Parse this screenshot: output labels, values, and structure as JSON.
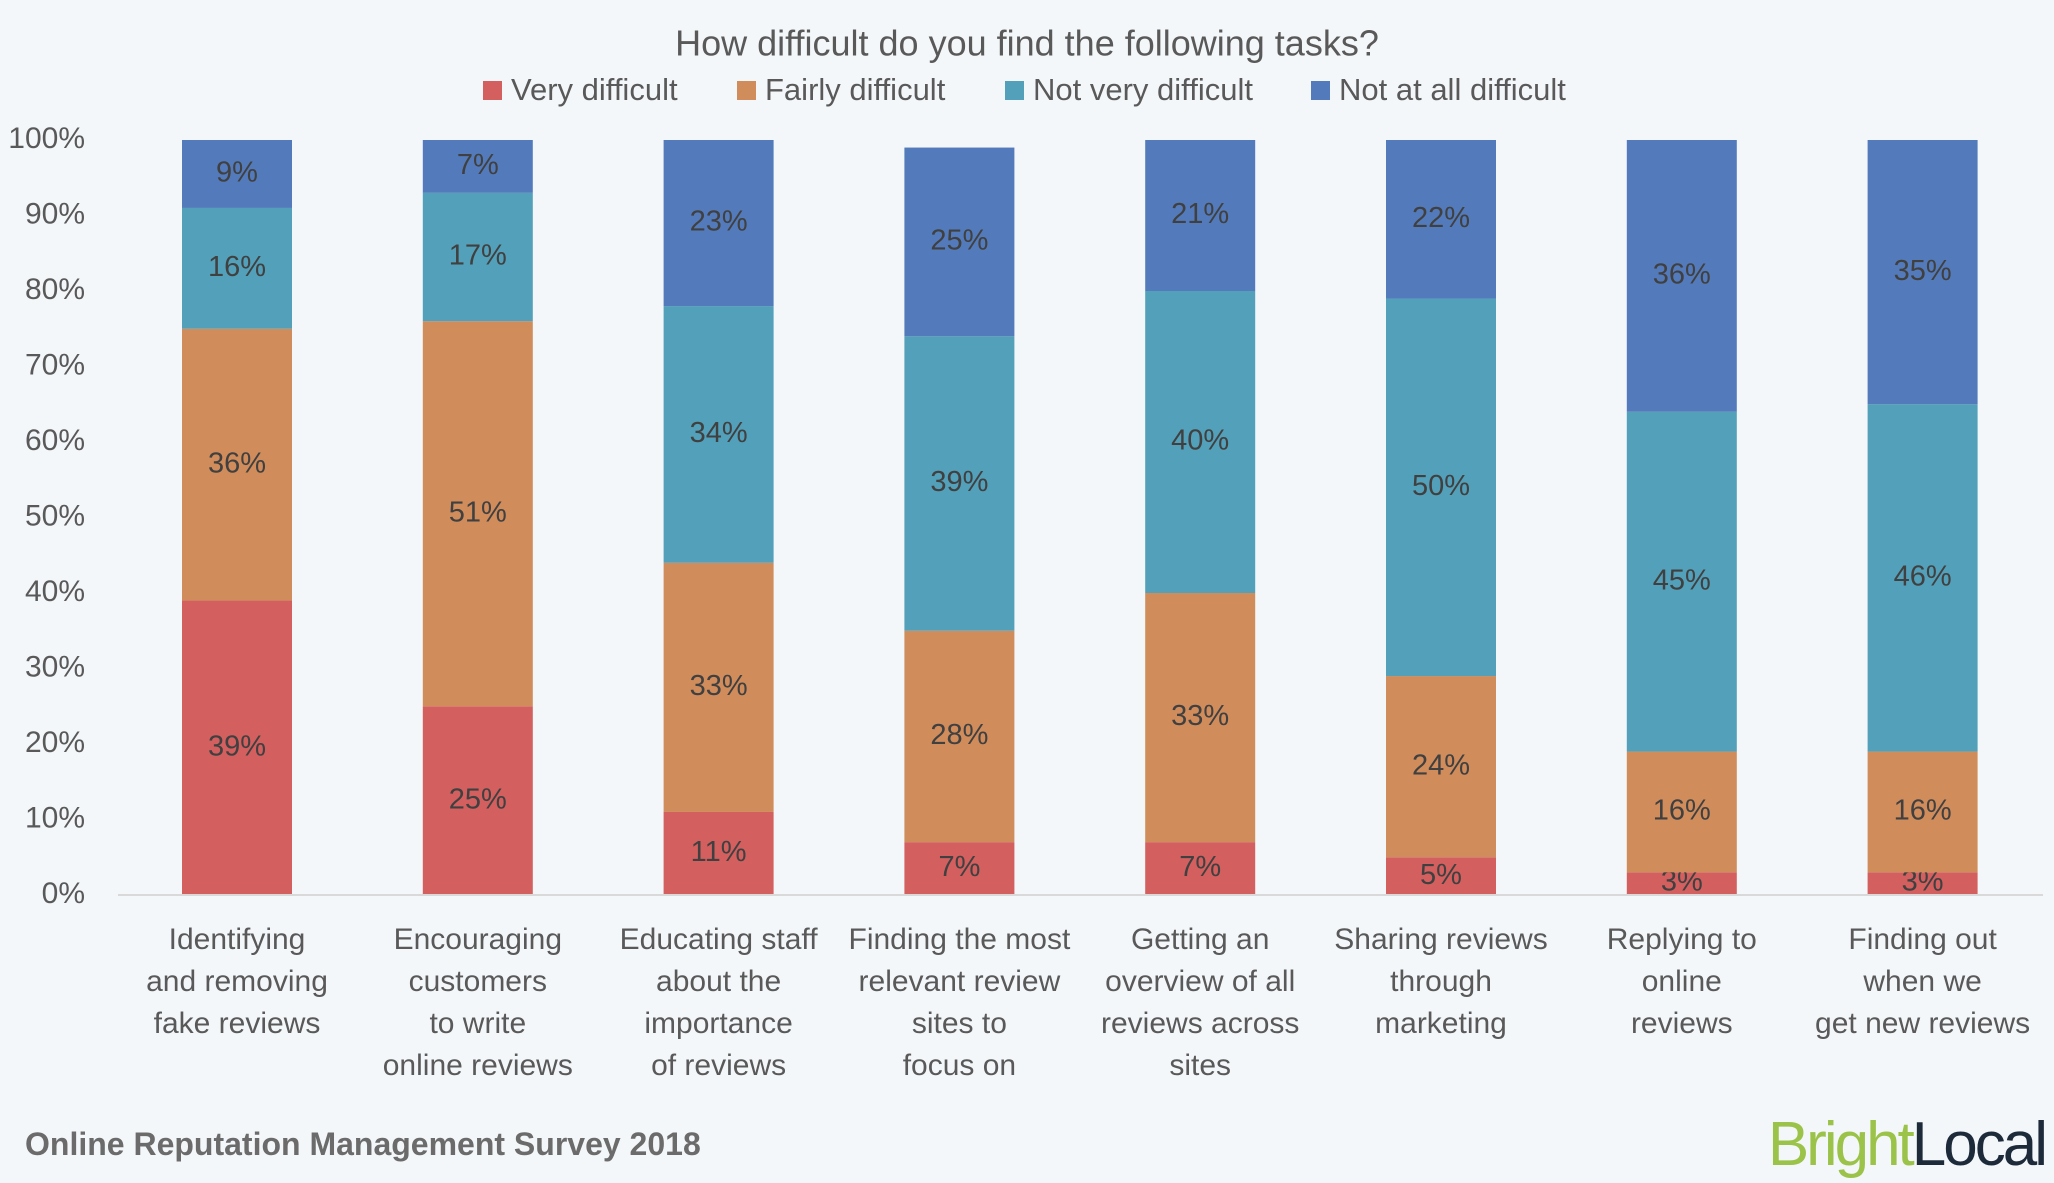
{
  "chart_data": {
    "type": "bar",
    "stacked": true,
    "title": "How difficult do you find the following tasks?",
    "categories": [
      [
        "Identifying",
        "and removing",
        "fake reviews"
      ],
      [
        "Encouraging",
        "customers",
        "to write",
        "online reviews"
      ],
      [
        "Educating staff",
        "about the",
        "importance",
        "of reviews"
      ],
      [
        "Finding the most",
        "relevant review",
        "sites to",
        "focus on"
      ],
      [
        "Getting an",
        "overview of all",
        "reviews across",
        "sites"
      ],
      [
        "Sharing reviews",
        "through",
        "marketing"
      ],
      [
        "Replying to",
        "online",
        "reviews"
      ],
      [
        "Finding out",
        "when we",
        "get new reviews"
      ]
    ],
    "series": [
      {
        "name": "Very difficult",
        "color": "#d35f5f",
        "values": [
          39,
          25,
          11,
          7,
          7,
          5,
          3,
          3
        ]
      },
      {
        "name": "Fairly difficult",
        "color": "#d18c5b",
        "values": [
          36,
          51,
          33,
          28,
          33,
          24,
          16,
          16
        ]
      },
      {
        "name": "Not very difficult",
        "color": "#53a0ba",
        "values": [
          16,
          17,
          34,
          39,
          40,
          50,
          45,
          46
        ]
      },
      {
        "name": "Not at all difficult",
        "color": "#537bbb",
        "values": [
          9,
          7,
          23,
          25,
          21,
          22,
          36,
          35
        ]
      }
    ],
    "ylim": [
      0,
      100
    ],
    "yticks": [
      "0%",
      "10%",
      "20%",
      "30%",
      "40%",
      "50%",
      "60%",
      "70%",
      "80%",
      "90%",
      "100%"
    ],
    "legend_position": "top",
    "grid": false,
    "value_suffix": "%"
  },
  "footer": "Online Reputation Management Survey 2018",
  "logo": {
    "part1": "Bright",
    "part2": "Local",
    "color1": "#9bc34a",
    "color2": "#1c2a3a"
  }
}
